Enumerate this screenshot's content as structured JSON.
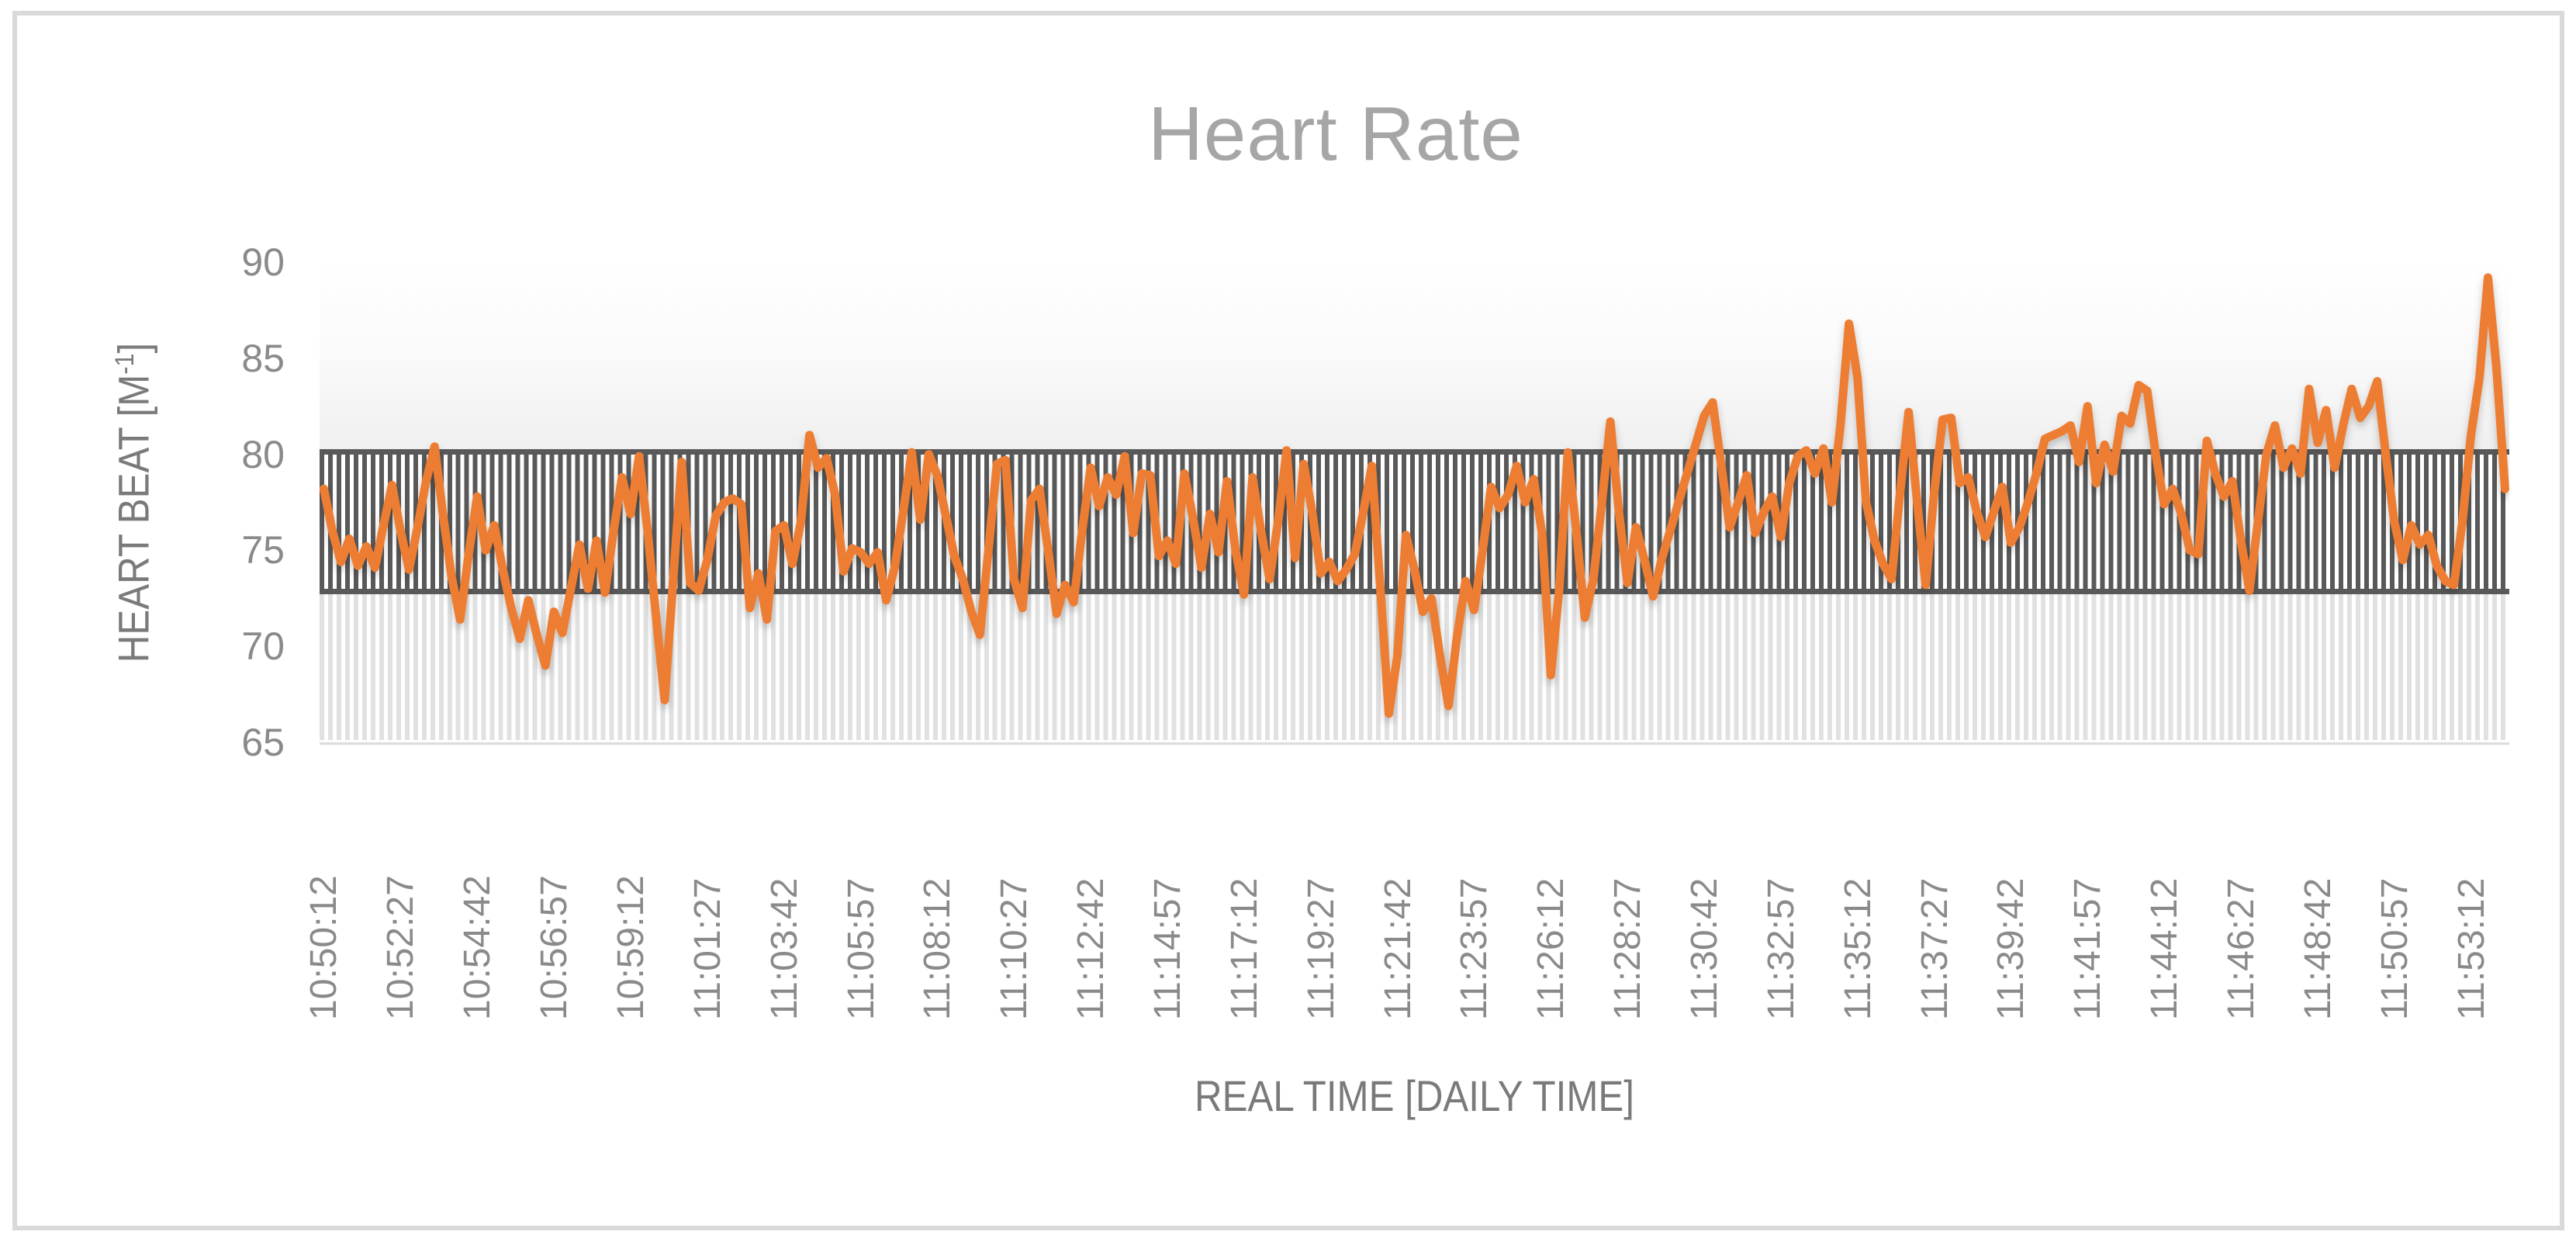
{
  "title": "Heart Rate",
  "y_axis": {
    "label_base": "HEART BEAT [M",
    "label_sup": "-1",
    "label_close": "]"
  },
  "x_axis": {
    "label": "REAL TIME [DAILY TIME]"
  },
  "colors": {
    "line": "#ED7D31",
    "dark_band_stripe": "#595959",
    "dark_band_border": "#595959",
    "light_band_stripe": "#E1E1E1",
    "title_text": "#A6A6A6",
    "axis_text": "#8A8A8A",
    "frame_border": "#D9D9D9"
  },
  "chart_data": {
    "type": "line",
    "title": "Heart Rate",
    "xlabel": "REAL TIME [DAILY TIME]",
    "ylabel": "HEART BEAT [M-1]",
    "ylim": [
      65,
      90
    ],
    "y_ticks": [
      90,
      85,
      80,
      75,
      70,
      65
    ],
    "grid": false,
    "legend": "none",
    "start_time": "10:50:12",
    "interval_seconds": 15,
    "label_every": 9,
    "x_tick_labels": [
      "10:50:12",
      "10:52:27",
      "10:54:42",
      "10:56:57",
      "10:59:12",
      "11:01:27",
      "11:03:42",
      "11:05:57",
      "11:08:12",
      "11:10:27",
      "11:12:42",
      "11:14:57",
      "11:17:12",
      "11:19:27",
      "11:21:42",
      "11:23:57",
      "11:26:12",
      "11:28:27",
      "11:30:42",
      "11:32:57",
      "11:35:12",
      "11:37:27",
      "11:39:42",
      "11:41:57",
      "11:44:12",
      "11:46:27",
      "11:48:42",
      "11:50:57",
      "11:53:12"
    ],
    "bands": [
      {
        "name": "target-zone",
        "from": 73,
        "to": 80,
        "style": "dark",
        "stripe_color": "#595959",
        "border_color": "#595959"
      },
      {
        "name": "lower-zone",
        "from": 65,
        "to": 73,
        "style": "light",
        "stripe_color": "#E1E1E1",
        "border_color": "none"
      }
    ],
    "series": [
      {
        "name": "Heart Rate",
        "color": "#ED7D31",
        "values": [
          78.2,
          76,
          74.4,
          75.6,
          74.2,
          75.2,
          74.1,
          76.3,
          78.4,
          76,
          74,
          76.2,
          78.6,
          80.4,
          76.8,
          73.6,
          71.4,
          74.8,
          77.8,
          75,
          76.3,
          74,
          72,
          70.4,
          72.4,
          70.6,
          69,
          71.8,
          70.7,
          73,
          75.3,
          73,
          75.5,
          72.8,
          76,
          78.8,
          76.9,
          79.9,
          76,
          71.5,
          67.2,
          73.5,
          79.6,
          73.3,
          72.9,
          74.5,
          76.8,
          77.5,
          77.7,
          77.4,
          72,
          73.8,
          71.4,
          76,
          76.3,
          74.3,
          76.5,
          81,
          79.3,
          79.8,
          77.9,
          73.9,
          75.1,
          74.9,
          74.3,
          74.9,
          72.4,
          74.1,
          77,
          80.1,
          76.6,
          80,
          78.9,
          76.8,
          74.7,
          73.5,
          71.8,
          70.6,
          75,
          79.5,
          79.7,
          73.5,
          72,
          77.6,
          78.2,
          75,
          71.7,
          73.2,
          72.3,
          76,
          79.3,
          77.3,
          78.8,
          77.9,
          79.9,
          75.9,
          79,
          78.9,
          74.7,
          75.5,
          74.3,
          79,
          76.7,
          74.1,
          76.9,
          74.9,
          78.6,
          75,
          72.7,
          78.8,
          76,
          73.5,
          76.5,
          80.2,
          74.6,
          79.5,
          77,
          73.8,
          74.4,
          73.4,
          74,
          74.8,
          77,
          79.4,
          73,
          66.5,
          69.5,
          75.8,
          74,
          71.8,
          72.5,
          69.5,
          66.9,
          70.5,
          73.4,
          71.9,
          75,
          78.3,
          77.2,
          77.9,
          79.4,
          77.5,
          78.7,
          75.8,
          68.5,
          73,
          80.1,
          76,
          71.5,
          73.5,
          77.5,
          81.7,
          77,
          73.3,
          76.2,
          74.5,
          72.6,
          74.5,
          76,
          77.5,
          79,
          80.5,
          82,
          82.7,
          79.5,
          76.2,
          77.5,
          78.9,
          75.9,
          77,
          77.8,
          75.7,
          78.5,
          79.9,
          80.2,
          79,
          80.3,
          77.5,
          81.5,
          86.8,
          84,
          77.5,
          75.5,
          74.3,
          73.5,
          78,
          82.2,
          77.5,
          73.2,
          78,
          81.8,
          81.9,
          78.5,
          78.8,
          77,
          75.7,
          77,
          78.3,
          75.4,
          76.2,
          77.5,
          79,
          80.8,
          81,
          81.2,
          81.5,
          79.6,
          82.5,
          78.5,
          80.5,
          79.1,
          82,
          81.6,
          83.6,
          83.3,
          80,
          77.4,
          78.2,
          76.9,
          75,
          74.8,
          80.7,
          79,
          77.8,
          78.6,
          75.5,
          72.9,
          76.5,
          80,
          81.5,
          79.3,
          80.3,
          79,
          83.4,
          80.6,
          82.3,
          79.3,
          81.5,
          83.4,
          81.9,
          82.5,
          83.8,
          80,
          76.5,
          74.5,
          76.3,
          75.3,
          75.8,
          74.2,
          73.4,
          73.2,
          76.5,
          81,
          84,
          89.2,
          84.5,
          78.2
        ]
      }
    ]
  }
}
